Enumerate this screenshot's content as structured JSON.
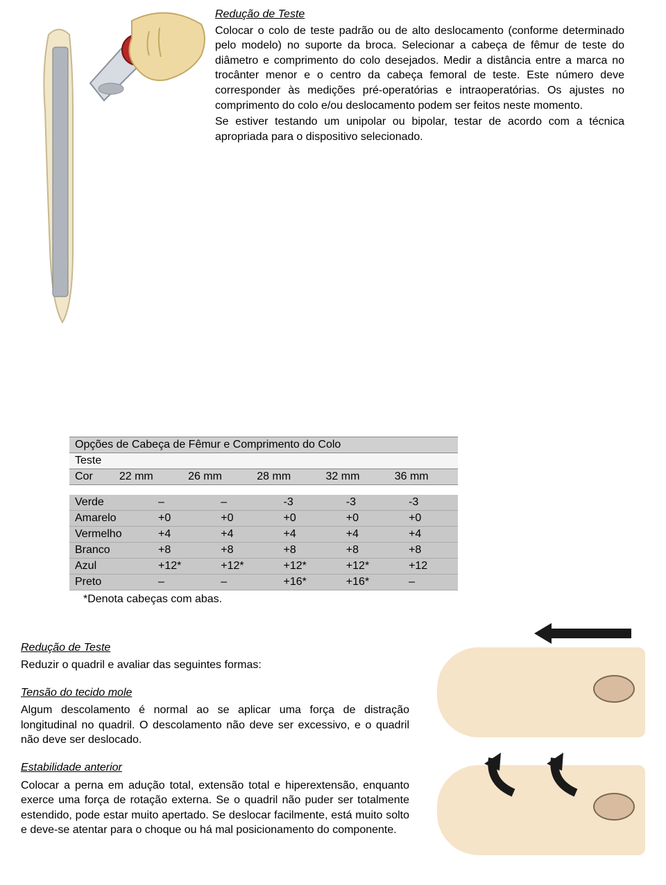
{
  "section1": {
    "title": "Redução de Teste",
    "p1": "Colocar o colo de teste padrão ou de alto deslocamento (conforme determinado pelo modelo) no suporte da broca. Selecionar a cabeça de fêmur de teste do diâmetro e comprimento do colo desejados. Medir a distância entre a marca no trocânter menor e o centro da cabeça femoral de teste. Este número deve corresponder às medições pré-operatórias e intraoperatórias. Os ajustes no comprimento do colo e/ou deslocamento podem ser feitos neste momento.",
    "p2": "Se estiver testando um unipolar ou bipolar, testar de acordo com a técnica apropriada para o dispositivo selecionado."
  },
  "table": {
    "title": "Opções de Cabeça de Fêmur e Comprimento do Colo",
    "subtitle": "Teste",
    "col_label": "Cor",
    "cols": [
      "22 mm",
      "26 mm",
      "28 mm",
      "32 mm",
      "36 mm"
    ],
    "rows": [
      {
        "label": "Verde",
        "cells": [
          "–",
          "–",
          "-3",
          "-3",
          "-3"
        ]
      },
      {
        "label": "Amarelo",
        "cells": [
          "+0",
          "+0",
          "+0",
          "+0",
          "+0"
        ]
      },
      {
        "label": "Vermelho",
        "cells": [
          "+4",
          "+4",
          "+4",
          "+4",
          "+4"
        ]
      },
      {
        "label": "Branco",
        "cells": [
          "+8",
          "+8",
          "+8",
          "+8",
          "+8"
        ]
      },
      {
        "label": "Azul",
        "cells": [
          "+12*",
          "+12*",
          "+12*",
          "+12*",
          "+12"
        ]
      },
      {
        "label": "Preto",
        "cells": [
          "–",
          "–",
          "+16*",
          "+16*",
          "–"
        ]
      }
    ],
    "footnote": "*Denota cabeças com abas.",
    "header_bg": "#d0d0d0",
    "row_bg": "#c8c8c8"
  },
  "section2": {
    "title": "Redução de Teste",
    "intro": "Reduzir o quadril e avaliar das seguintes formas:",
    "sub1_title": "Tensão do tecido mole",
    "sub1_text": "Algum descolamento é normal ao se aplicar uma força de distração longitudinal no quadril. O descolamento não deve ser excessivo, e o quadril não deve ser deslocado.",
    "sub2_title": "Estabilidade anterior",
    "sub2_text": "Colocar a perna em adução total, extensão total e hiperextensão, enquanto exerce uma força de rotação externa. Se o quadril não puder ser totalmente estendido, pode estar muito apertado. Se deslocar facilmente, está muito solto e deve-se atentar para o choque ou há mal posicionamento do componente."
  },
  "colors": {
    "skin": "#f6e4c9",
    "bone_outline": "#7b6a50",
    "arrow": "#1a1a1a",
    "ball": "#b62828",
    "stem": "#b0b4bc"
  }
}
